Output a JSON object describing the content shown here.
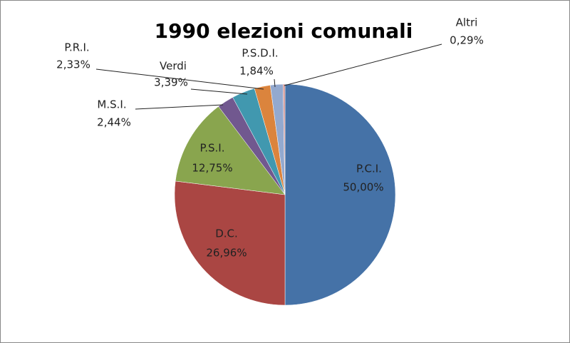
{
  "chart_data": {
    "type": "pie",
    "title": "1990 elezioni comunali",
    "categories": [
      "P.C.I.",
      "D.C.",
      "P.S.I.",
      "M.S.I.",
      "Verdi",
      "P.R.I.",
      "P.S.D.I.",
      "Altri"
    ],
    "values": [
      50.0,
      26.96,
      12.75,
      2.44,
      3.39,
      2.33,
      1.84,
      0.29
    ],
    "value_labels": [
      "50,00%",
      "26,96%",
      "12,75%",
      "2,44%",
      "3,39%",
      "2,33%",
      "1,84%",
      "0,29%"
    ],
    "colors": [
      "#4572a7",
      "#aa4643",
      "#89a54e",
      "#71588f",
      "#4198af",
      "#db843d",
      "#93a9cf",
      "#d19392"
    ]
  }
}
